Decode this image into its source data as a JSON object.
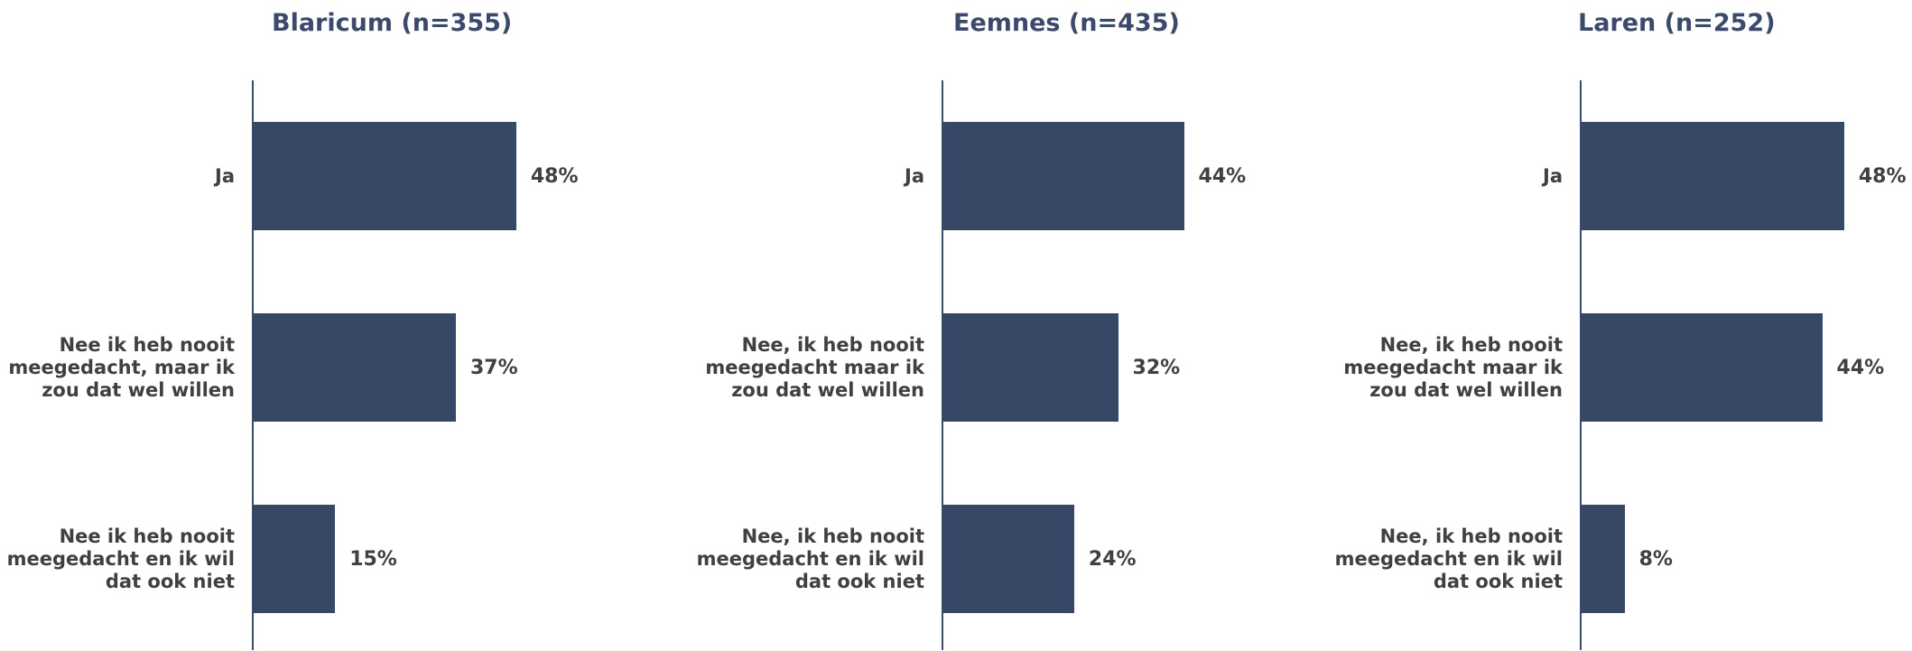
{
  "chart_data": [
    {
      "type": "barh",
      "title": "Blaricum (n=355)",
      "color": "#374766",
      "categories": [
        "Ja",
        "Nee ik heb nooit meegedacht, maar ik zou dat wel willen",
        "Nee ik heb nooit meegedacht en ik wil dat ook niet"
      ],
      "values": [
        48,
        37,
        15
      ],
      "value_labels": [
        "48%",
        "37%",
        "15%"
      ]
    },
    {
      "type": "barh",
      "title": "Eemnes (n=435)",
      "color": "#374766",
      "categories": [
        "Ja",
        "Nee, ik heb nooit meegedacht maar ik zou dat wel willen",
        "Nee, ik heb nooit meegedacht en ik wil dat ook niet"
      ],
      "values": [
        44,
        32,
        24
      ],
      "value_labels": [
        "44%",
        "32%",
        "24%"
      ]
    },
    {
      "type": "barh",
      "title": "Laren (n=252)",
      "color": "#374766",
      "categories": [
        "Ja",
        "Nee, ik heb nooit meegedacht maar ik zou dat wel willen",
        "Nee, ik heb nooit meegedacht en ik wil dat ook niet"
      ],
      "values": [
        48,
        44,
        8
      ],
      "value_labels": [
        "48%",
        "44%",
        "8%"
      ]
    }
  ]
}
